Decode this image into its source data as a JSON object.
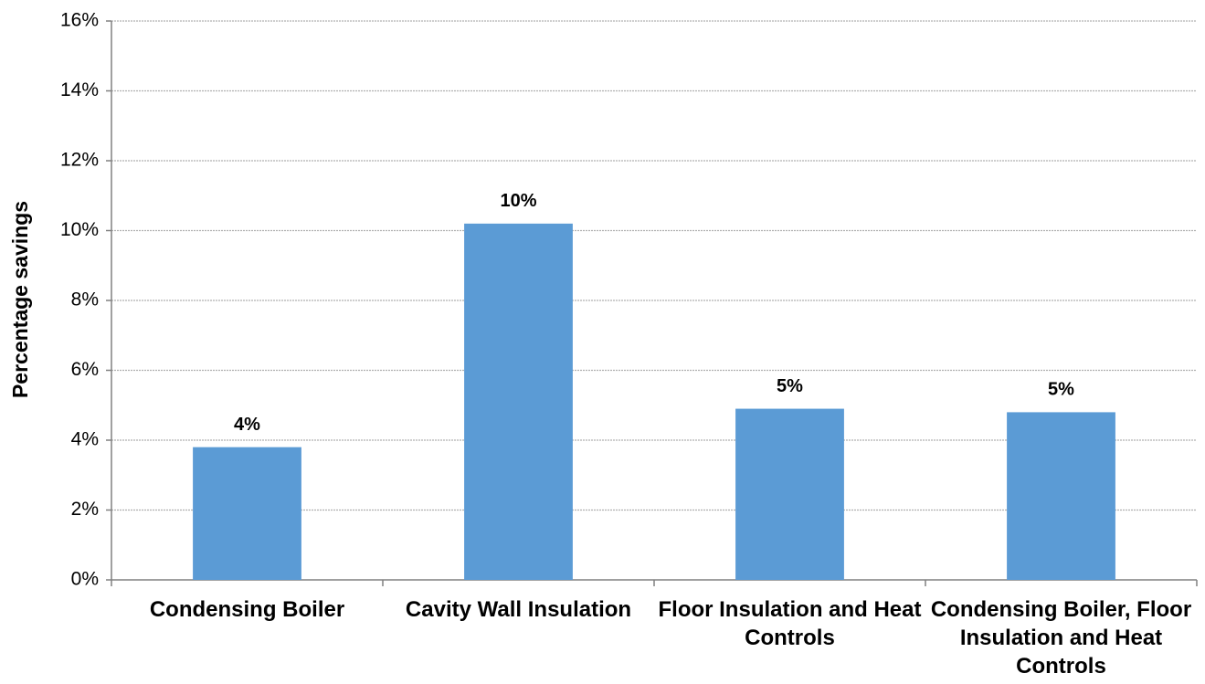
{
  "chart_data": {
    "type": "bar",
    "y_label": "Percentage savings",
    "categories": [
      "Condensing Boiler",
      "Cavity Wall Insulation",
      "Floor Insulation and Heat Controls",
      "Condensing Boiler, Floor Insulation and Heat Controls"
    ],
    "values": [
      3.8,
      10.2,
      4.9,
      4.8
    ],
    "value_labels": [
      "4%",
      "10%",
      "5%",
      "5%"
    ],
    "color": "#5b9bd5",
    "ylim": [
      0,
      16
    ],
    "yticks": [
      {
        "value": 0,
        "label": "0%"
      },
      {
        "value": 2,
        "label": "2%"
      },
      {
        "value": 4,
        "label": "4%"
      },
      {
        "value": 6,
        "label": "6%"
      },
      {
        "value": 8,
        "label": "8%"
      },
      {
        "value": 10,
        "label": "10%"
      },
      {
        "value": 12,
        "label": "12%"
      },
      {
        "value": 14,
        "label": "14%"
      },
      {
        "value": 16,
        "label": "16%"
      }
    ],
    "grid": true
  }
}
